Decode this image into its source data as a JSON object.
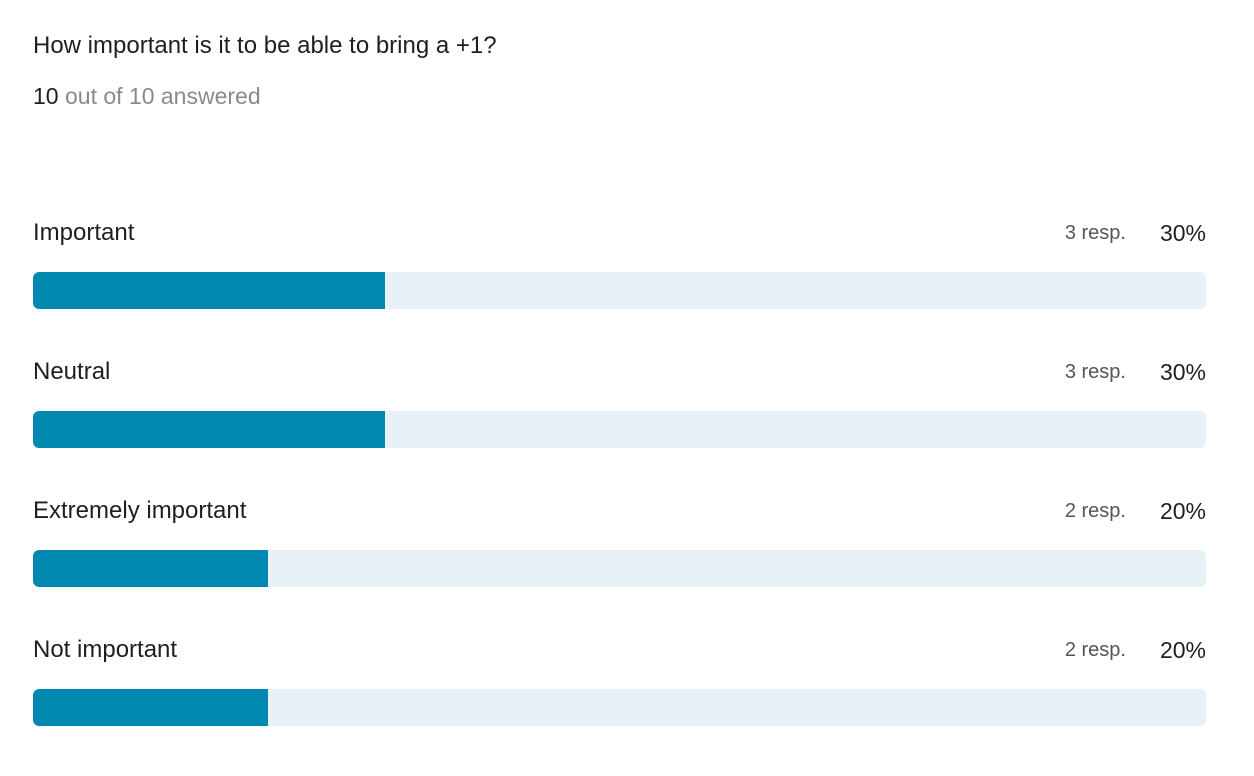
{
  "question": {
    "title": "How important is it to be able to bring a +1?",
    "answered_count": "10",
    "answered_suffix": "out of 10 answered"
  },
  "colors": {
    "bar_fill": "#0088b0",
    "bar_track": "#e8f1f5",
    "text_primary": "#1f1f1f",
    "text_secondary": "#8a8a8a"
  },
  "chart_data": {
    "type": "bar",
    "orientation": "horizontal",
    "categories": [
      "Important",
      "Neutral",
      "Extremely important",
      "Not important"
    ],
    "responses": [
      3,
      3,
      2,
      2
    ],
    "responses_labels": [
      "3 resp.",
      "3 resp.",
      "2 resp.",
      "2 resp."
    ],
    "values": [
      30,
      30,
      20,
      20
    ],
    "value_labels": [
      "30%",
      "30%",
      "20%",
      "20%"
    ],
    "xlim": [
      0,
      100
    ],
    "grid": false,
    "legend": "none"
  }
}
